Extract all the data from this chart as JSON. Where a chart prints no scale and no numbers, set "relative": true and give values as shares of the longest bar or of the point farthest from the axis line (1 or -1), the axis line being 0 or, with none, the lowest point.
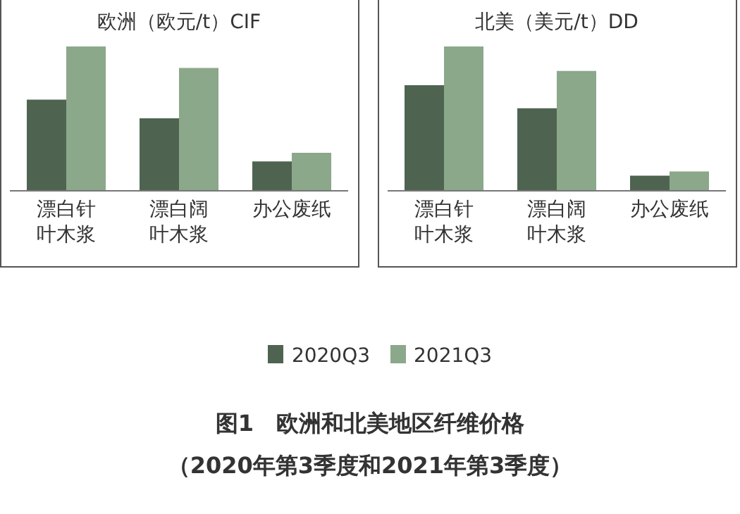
{
  "chart_data": [
    {
      "type": "bar",
      "title": "欧洲（欧元/t）CIF",
      "relative": true,
      "categories": [
        "漂白针叶木浆",
        "漂白阔叶木浆",
        "办公废纸"
      ],
      "series": [
        {
          "name": "2020Q3",
          "color": "#4e6450",
          "values": [
            0.63,
            0.5,
            0.2
          ]
        },
        {
          "name": "2021Q3",
          "color": "#8ba88a",
          "values": [
            1,
            0.85,
            0.26
          ]
        }
      ],
      "legend": "bottom",
      "annotations": [
        "图1　欧洲和北美地区纤维价格",
        "（2020年第3季度和2021年第3季度）"
      ]
    },
    {
      "type": "bar",
      "title": "北美（美元/t）DD",
      "relative": true,
      "categories": [
        "漂白针叶木浆",
        "漂白阔叶木浆",
        "办公废纸"
      ],
      "series": [
        {
          "name": "2020Q3",
          "color": "#4e6450",
          "values": [
            0.73,
            0.57,
            0.1
          ]
        },
        {
          "name": "2021Q3",
          "color": "#8ba88a",
          "values": [
            1,
            0.83,
            0.13
          ]
        }
      ]
    }
  ]
}
